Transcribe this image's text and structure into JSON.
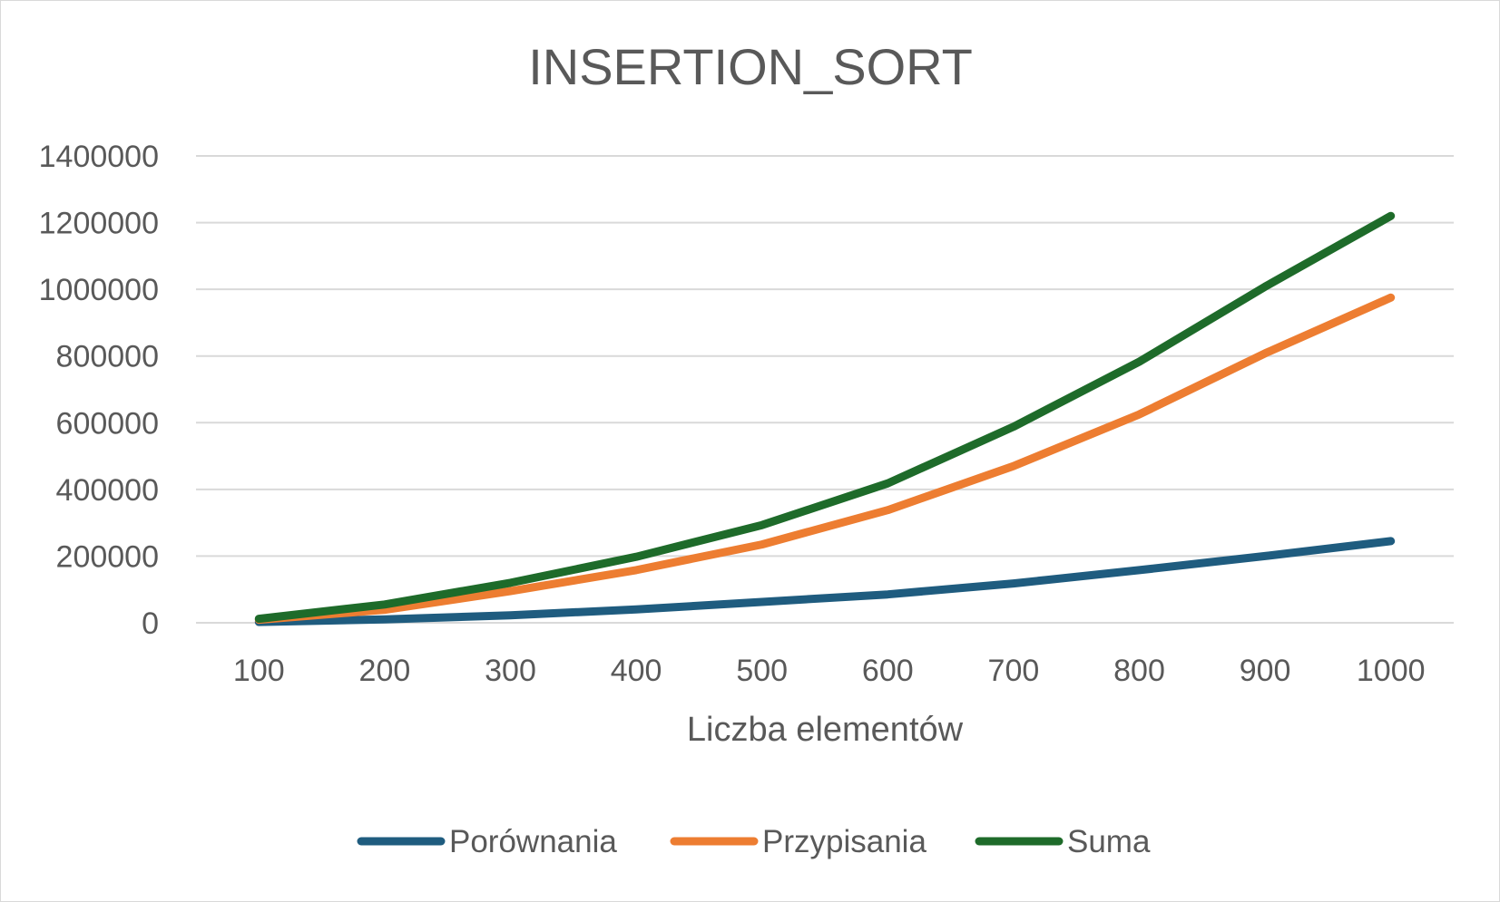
{
  "chart_data": {
    "type": "line",
    "title": "INSERTION_SORT",
    "xlabel": "Liczba elementów",
    "ylabel": "",
    "categories": [
      "100",
      "200",
      "300",
      "400",
      "500",
      "600",
      "700",
      "800",
      "900",
      "1000"
    ],
    "ylim": [
      0,
      1400000
    ],
    "yticks": [
      "0",
      "200000",
      "400000",
      "600000",
      "800000",
      "1000000",
      "1200000",
      "1400000"
    ],
    "grid": true,
    "legend_position": "bottom",
    "series": [
      {
        "name": "Porównania",
        "color": "#1f5c7f",
        "values": [
          2500,
          10000,
          22500,
          40000,
          62500,
          85000,
          118000,
          158000,
          200000,
          245000
        ]
      },
      {
        "name": "Przypisania",
        "color": "#ed7d31",
        "values": [
          9000,
          39000,
          95000,
          158000,
          235000,
          338000,
          470000,
          625000,
          808000,
          975000
        ]
      },
      {
        "name": "Suma",
        "color": "#1e6b2a",
        "values": [
          12000,
          55000,
          120000,
          198000,
          293000,
          418000,
          588000,
          783000,
          1008000,
          1220000
        ]
      }
    ]
  }
}
